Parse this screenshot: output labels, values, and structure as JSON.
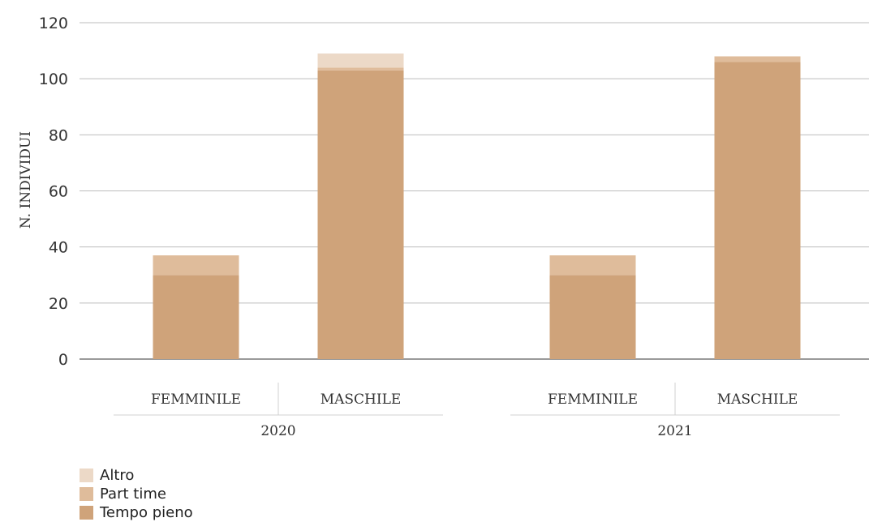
{
  "chart_data": {
    "type": "bar",
    "stacked": true,
    "ylabel": "N. INDIVIDUI",
    "ylim": [
      0,
      120
    ],
    "yticks": [
      0,
      20,
      40,
      60,
      80,
      100,
      120
    ],
    "grid": true,
    "groups": [
      {
        "label": "2020",
        "categories": [
          "FEMMINILE",
          "MASCHILE"
        ]
      },
      {
        "label": "2021",
        "categories": [
          "FEMMINILE",
          "MASCHILE"
        ]
      }
    ],
    "series": [
      {
        "name": "Tempo pieno",
        "color": "#cfa37a",
        "values": [
          30,
          103,
          30,
          106
        ]
      },
      {
        "name": "Part time",
        "color": "#dfbc9b",
        "values": [
          7,
          1,
          7,
          2
        ]
      },
      {
        "name": "Altro",
        "color": "#ecd9c7",
        "values": [
          0,
          5,
          0,
          0
        ]
      }
    ],
    "legend_position": "bottom-left"
  }
}
